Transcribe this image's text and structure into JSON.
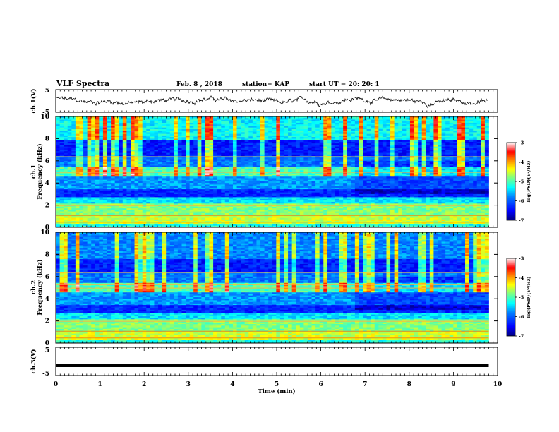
{
  "header": {
    "title": "VLF Spectra",
    "date": "Feb. 8 , 2018",
    "station": "station= KAP",
    "start_time": "start UT =  20: 20: 1"
  },
  "chart_data": [
    {
      "type": "line",
      "name": "ch1-waveform",
      "ylabel": "ch.1(V)",
      "ylim": [
        -5,
        5
      ],
      "yticks": [
        "5",
        "-5"
      ],
      "xlim": [
        0,
        10
      ],
      "description_values": "noisy waveform fluctuating roughly between -2 and 2 V over 0-9.8 min"
    },
    {
      "type": "heatmap",
      "name": "ch1-spectrogram",
      "ylabel": "ch.1\nFrequency (kHz)",
      "ylabel_line1": "ch.1",
      "ylabel_line2": "Frequency (kHz)",
      "ylim": [
        0,
        10
      ],
      "yticks": [
        "0",
        "2",
        "4",
        "6",
        "8",
        "10"
      ],
      "xlim": [
        0,
        10
      ],
      "data_extent_min": 9.8,
      "colorbar": {
        "label": "log(PSD)(V²/Hz)",
        "range": [
          -7,
          -3
        ],
        "ticks": [
          "-3",
          "-4",
          "-5",
          "-6",
          "-7"
        ]
      }
    },
    {
      "type": "heatmap",
      "name": "ch2-spectrogram",
      "ylabel_line1": "ch.2",
      "ylabel_line2": "Frequency (kHz)",
      "ylim": [
        0,
        10
      ],
      "yticks": [
        "0",
        "2",
        "4",
        "6",
        "8",
        "10"
      ],
      "xlim": [
        0,
        10
      ],
      "data_extent_min": 9.8,
      "colorbar": {
        "label": "log(PSD)(V²/Hz)",
        "range": [
          -7,
          -3
        ],
        "ticks": [
          "-3",
          "-4",
          "-5",
          "-6",
          "-7"
        ]
      }
    },
    {
      "type": "line",
      "name": "ch3-waveform",
      "ylabel": "ch.3(V)",
      "ylim": [
        -5,
        5
      ],
      "yticks": [
        "5",
        "-5"
      ],
      "xlim": [
        0,
        10
      ],
      "constant_value": -1.5
    }
  ],
  "xaxis": {
    "label": "Time (min)",
    "ticks": [
      "0",
      "1",
      "2",
      "3",
      "4",
      "5",
      "6",
      "7",
      "8",
      "9",
      "10"
    ]
  },
  "colors": {
    "cmap": [
      "#00007f",
      "#0000ff",
      "#0080ff",
      "#00ffff",
      "#80ff80",
      "#ffff00",
      "#ff8000",
      "#ff0000",
      "#ffffff"
    ]
  }
}
